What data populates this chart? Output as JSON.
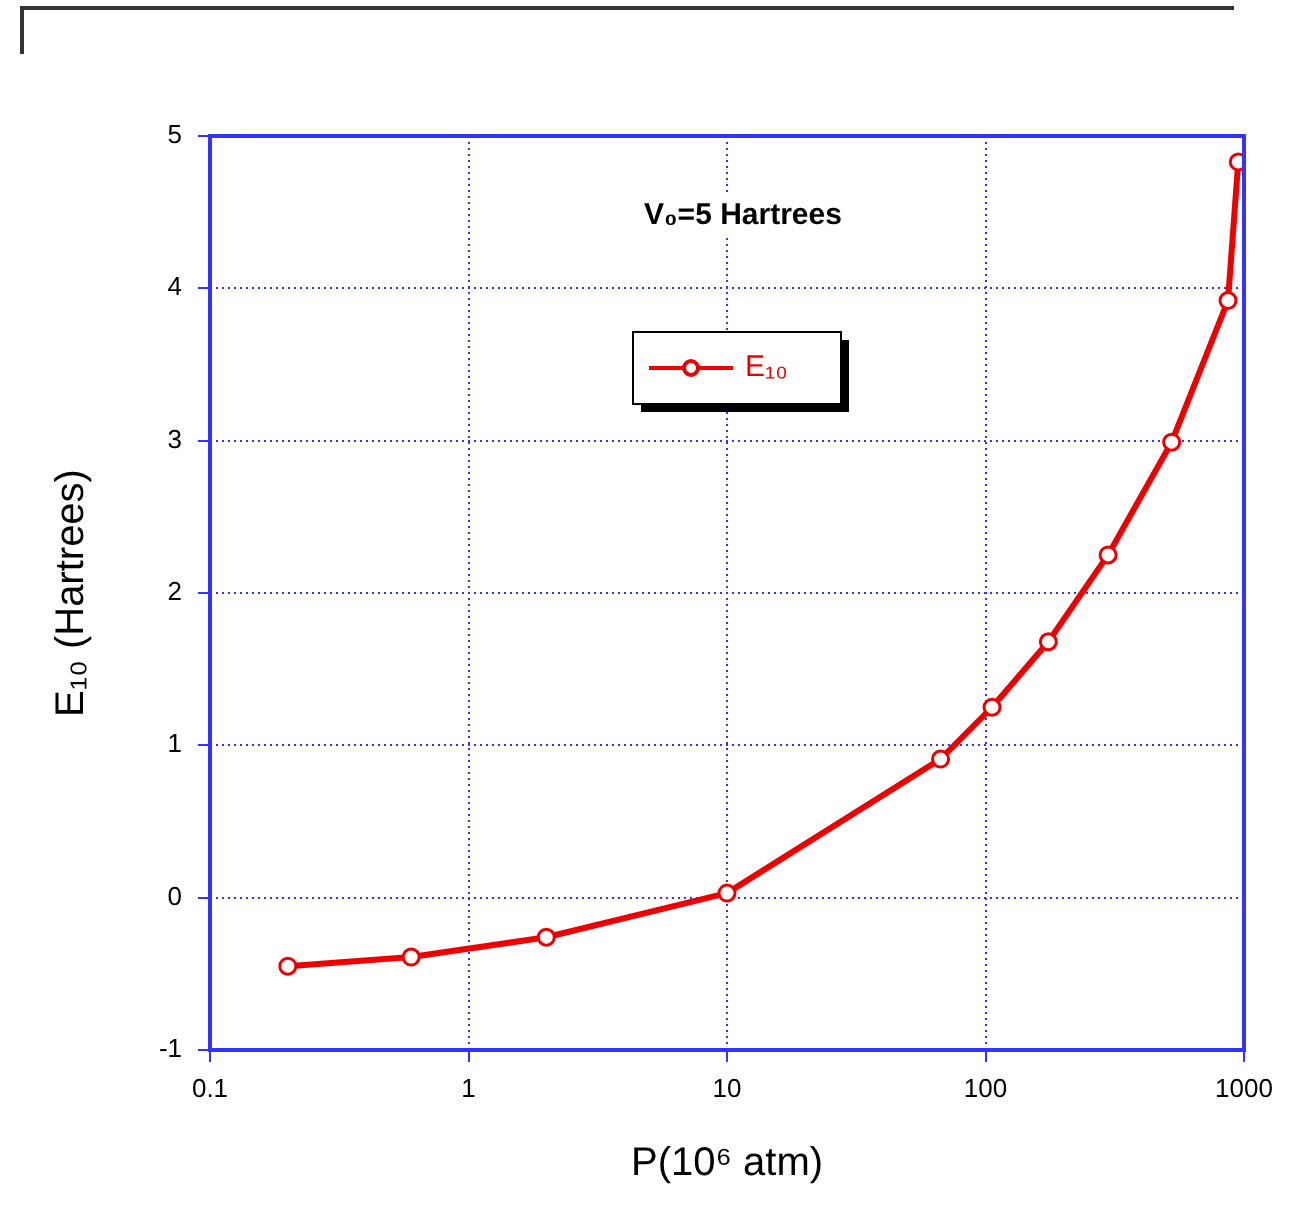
{
  "chart_data": {
    "type": "line",
    "annotations": [
      "V₀=5 Hartrees"
    ],
    "xlabel": "P(10⁶ atm)",
    "ylabel": "E₁₀ (Hartrees)",
    "x": [
      0.2,
      0.6,
      2,
      10,
      67,
      106,
      175,
      298,
      525,
      867,
      950
    ],
    "series": [
      {
        "name": "E₁₀",
        "color": "#ee0000",
        "values": [
          -0.45,
          -0.39,
          -0.26,
          0.03,
          0.91,
          1.25,
          1.68,
          2.25,
          2.99,
          3.92,
          4.83
        ]
      }
    ],
    "log": "x",
    "xlim": [
      0.1,
      1000
    ],
    "xticks": [
      0.1,
      1,
      10,
      100,
      1000
    ],
    "ylim": [
      -1,
      5
    ],
    "yticks": [
      -1,
      0,
      1,
      2,
      3,
      4,
      5
    ],
    "grid": true,
    "legend": "top",
    "marker": "circle",
    "line_style": "solid"
  }
}
